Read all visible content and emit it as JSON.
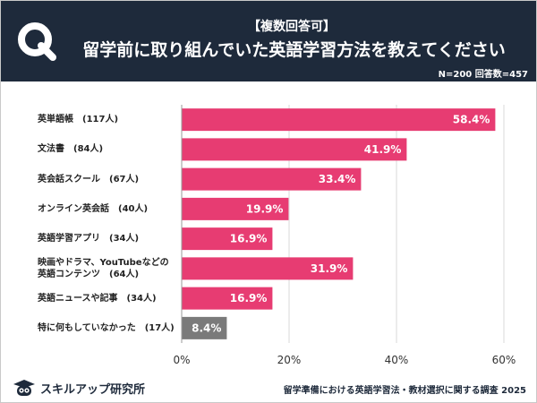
{
  "header": {
    "logo_letter": "Q",
    "subtitle": "【複数回答可】",
    "title": "留学前に取り組んでいた英語学習方法を教えてください"
  },
  "sample_note": "N=200 回答数=457",
  "footer": {
    "brand_name": "スキルアップ研究所",
    "source": "留学準備における英語学習法・教材選択に関する調査 2025"
  },
  "colors": {
    "bar": "#e73c72",
    "bar_other": "#7a7a7a",
    "header_bg": "#1e2a3b",
    "grid": "#d9d9d9"
  },
  "chart_data": {
    "type": "bar",
    "orientation": "horizontal",
    "title": "留学前に取り組んでいた英語学習方法を教えてください",
    "categories": [
      "英単語帳　(117人)",
      "文法書　(84人)",
      "英会話スクール　(67人)",
      "オンライン英会話　(40人)",
      "英語学習アプリ　(34人)",
      [
        "映画やドラマ、YouTubeなどの",
        "英語コンテンツ　(64人)"
      ],
      "英語ニュースや記事　(34人)",
      "特に何もしていなかった　(17人)"
    ],
    "values": [
      58.4,
      41.9,
      33.4,
      19.9,
      16.9,
      31.9,
      16.9,
      8.4
    ],
    "value_labels": [
      "58.4%",
      "41.9%",
      "33.4%",
      "19.9%",
      "16.9%",
      "31.9%",
      "16.9%",
      "8.4%"
    ],
    "xlim": [
      0,
      60
    ],
    "xticks": [
      "0%",
      "20%",
      "40%",
      "60%"
    ],
    "grid": true
  }
}
